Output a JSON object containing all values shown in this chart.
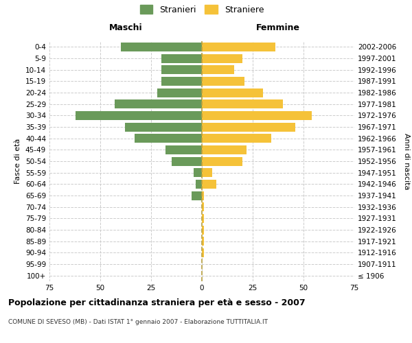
{
  "age_groups": [
    "100+",
    "95-99",
    "90-94",
    "85-89",
    "80-84",
    "75-79",
    "70-74",
    "65-69",
    "60-64",
    "55-59",
    "50-54",
    "45-49",
    "40-44",
    "35-39",
    "30-34",
    "25-29",
    "20-24",
    "15-19",
    "10-14",
    "5-9",
    "0-4"
  ],
  "birth_years": [
    "≤ 1906",
    "1907-1911",
    "1912-1916",
    "1917-1921",
    "1922-1926",
    "1927-1931",
    "1932-1936",
    "1937-1941",
    "1942-1946",
    "1947-1951",
    "1952-1956",
    "1957-1961",
    "1962-1966",
    "1967-1971",
    "1972-1976",
    "1977-1981",
    "1982-1986",
    "1987-1991",
    "1992-1996",
    "1997-2001",
    "2002-2006"
  ],
  "maschi": [
    0,
    0,
    0,
    0,
    0,
    0,
    0,
    5,
    3,
    4,
    15,
    18,
    33,
    38,
    62,
    43,
    22,
    20,
    20,
    20,
    40
  ],
  "femmine": [
    0,
    0,
    1,
    1,
    1,
    1,
    1,
    1,
    7,
    5,
    20,
    22,
    34,
    46,
    54,
    40,
    30,
    21,
    16,
    20,
    36
  ],
  "male_color": "#6a9a5a",
  "female_color": "#f5c239",
  "background_color": "#ffffff",
  "grid_color": "#cccccc",
  "dashed_line_color": "#b8a040",
  "title": "Popolazione per cittadinanza straniera per età e sesso - 2007",
  "subtitle": "COMUNE DI SEVESO (MB) - Dati ISTAT 1° gennaio 2007 - Elaborazione TUTTITALIA.IT",
  "xlabel_left": "Maschi",
  "xlabel_right": "Femmine",
  "ylabel_left": "Fasce di età",
  "ylabel_right": "Anni di nascita",
  "legend_male": "Stranieri",
  "legend_female": "Straniere",
  "xlim": 75,
  "figsize": [
    6.0,
    5.0
  ],
  "dpi": 100
}
